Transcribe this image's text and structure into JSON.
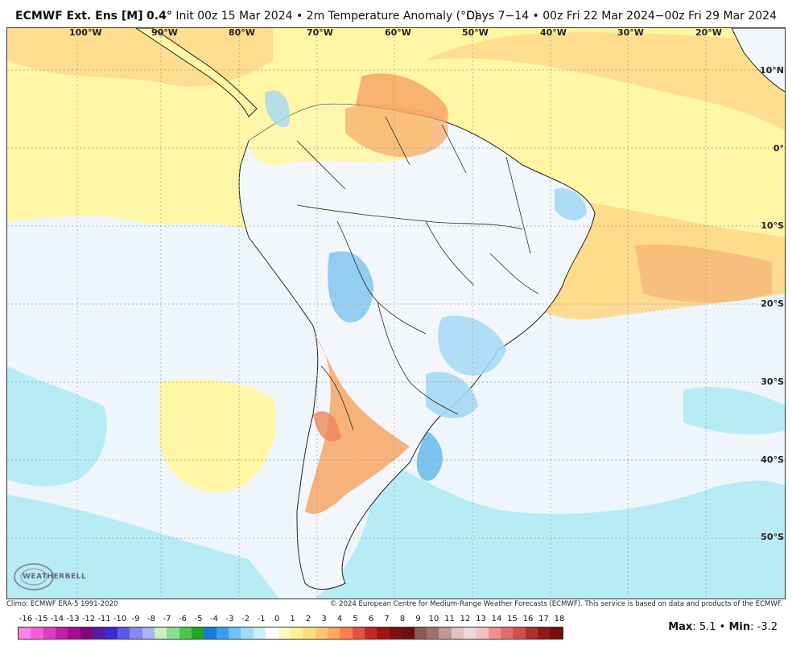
{
  "header": {
    "model": "ECMWF Ext. Ens [M]",
    "resolution": "0.4",
    "init": "Init 00z 15 Mar 2024",
    "separator": "•",
    "product": "2m Temperature Anomaly (°C)",
    "period": "Days 7−14 • 00z Fri 22 Mar 2024−00z Fri 29 Mar 2024"
  },
  "map": {
    "longitude_labels": [
      "100°W",
      "90°W",
      "80°W",
      "70°W",
      "60°W",
      "50°W",
      "40°W",
      "30°W",
      "20°W"
    ],
    "latitude_labels": [
      "10°N",
      "0°",
      "10°S",
      "20°S",
      "30°S",
      "40°S",
      "50°S"
    ],
    "colors": {
      "ocean_cool": "#b7ecf7",
      "warm_light": "#fff6a6",
      "warm_mid": "#ffd88a",
      "warm_strong": "#f7a665",
      "land_neutral": "#f3f7fc",
      "cool_blue": "#7cc2ef",
      "grid": "#999999",
      "border": "#222222"
    }
  },
  "footer": {
    "climo": "Climo: ECMWF ERA-5 1991-2020",
    "copyright": "© 2024 European Centre for Medium-Range Weather Forecasts (ECMWF). This service is based on data and products of the ECMWF."
  },
  "colorbar": {
    "labels": [
      "-16",
      "-15",
      "-14",
      "-13",
      "-12",
      "-11",
      "-10",
      "-9",
      "-8",
      "-7",
      "-6",
      "-5",
      "-4",
      "-3",
      "-2",
      "-1",
      "0",
      "1",
      "2",
      "3",
      "4",
      "5",
      "6",
      "7",
      "8",
      "9",
      "10",
      "11",
      "12",
      "13",
      "14",
      "15",
      "16",
      "17",
      "18"
    ],
    "colors": [
      "#ff80e6",
      "#f060d8",
      "#d840c0",
      "#c020a8",
      "#a01090",
      "#800878",
      "#5a1aa8",
      "#3a2ad0",
      "#5a58e8",
      "#8a88f0",
      "#b0b0f8",
      "#c8f0c0",
      "#8ae08a",
      "#4cc84c",
      "#1ea81e",
      "#1a7ad8",
      "#3a9ef0",
      "#6cc0f8",
      "#a0dcfa",
      "#cdeffc",
      "#ffffff",
      "#fff8c0",
      "#fff09a",
      "#ffe080",
      "#ffc870",
      "#ffa860",
      "#f88050",
      "#e85040",
      "#c82828",
      "#a01414",
      "#801010",
      "#6a1010",
      "#8a5a50",
      "#a07070",
      "#c09898",
      "#e0c0c0",
      "#f0d8d8",
      "#f8c0c0",
      "#f09090",
      "#e07070",
      "#d05050",
      "#b03030",
      "#901818",
      "#701010"
    ]
  },
  "stats": {
    "max_label": "Max",
    "max_value": "5.1",
    "sep": "•",
    "min_label": "Min",
    "min_value": "-3.2"
  },
  "logo": {
    "text": "WEATHERBELL"
  }
}
